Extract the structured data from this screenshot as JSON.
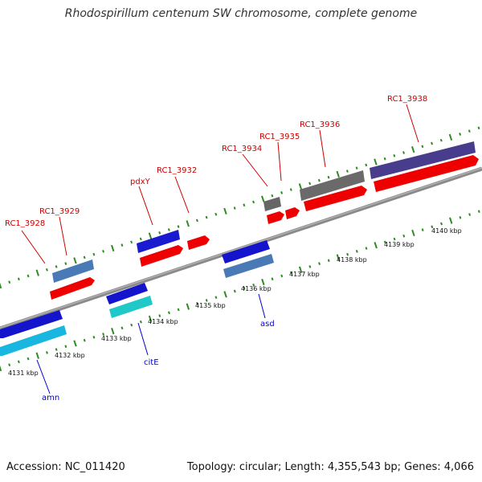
{
  "title": "Rhodospirillum centenum SW chromosome, complete genome",
  "footer": {
    "accession": "Accession: NC_011420",
    "summary": "Topology: circular; Length: 4,355,543 bp; Genes: 4,066"
  },
  "colors": {
    "label_top": "#cc0000",
    "label_bottom": "#0000cc",
    "tick": "#2e8b22",
    "backbone": "#8c8c8c"
  },
  "kbp_labels": [
    "4131 kbp",
    "4132 kbp",
    "4133 kbp",
    "4134 kbp",
    "4135 kbp",
    "4136 kbp",
    "4137 kbp",
    "4138 kbp",
    "4139 kbp",
    "4140 kbp"
  ],
  "genes_top": [
    {
      "name": "RC1_3928"
    },
    {
      "name": "RC1_3929"
    },
    {
      "name": "pdxY"
    },
    {
      "name": "RC1_3932"
    },
    {
      "name": "RC1_3934"
    },
    {
      "name": "RC1_3935"
    },
    {
      "name": "RC1_3936"
    },
    {
      "name": "RC1_3938"
    }
  ],
  "genes_bottom": [
    {
      "name": "amn"
    },
    {
      "name": "citE"
    },
    {
      "name": "asd"
    }
  ]
}
